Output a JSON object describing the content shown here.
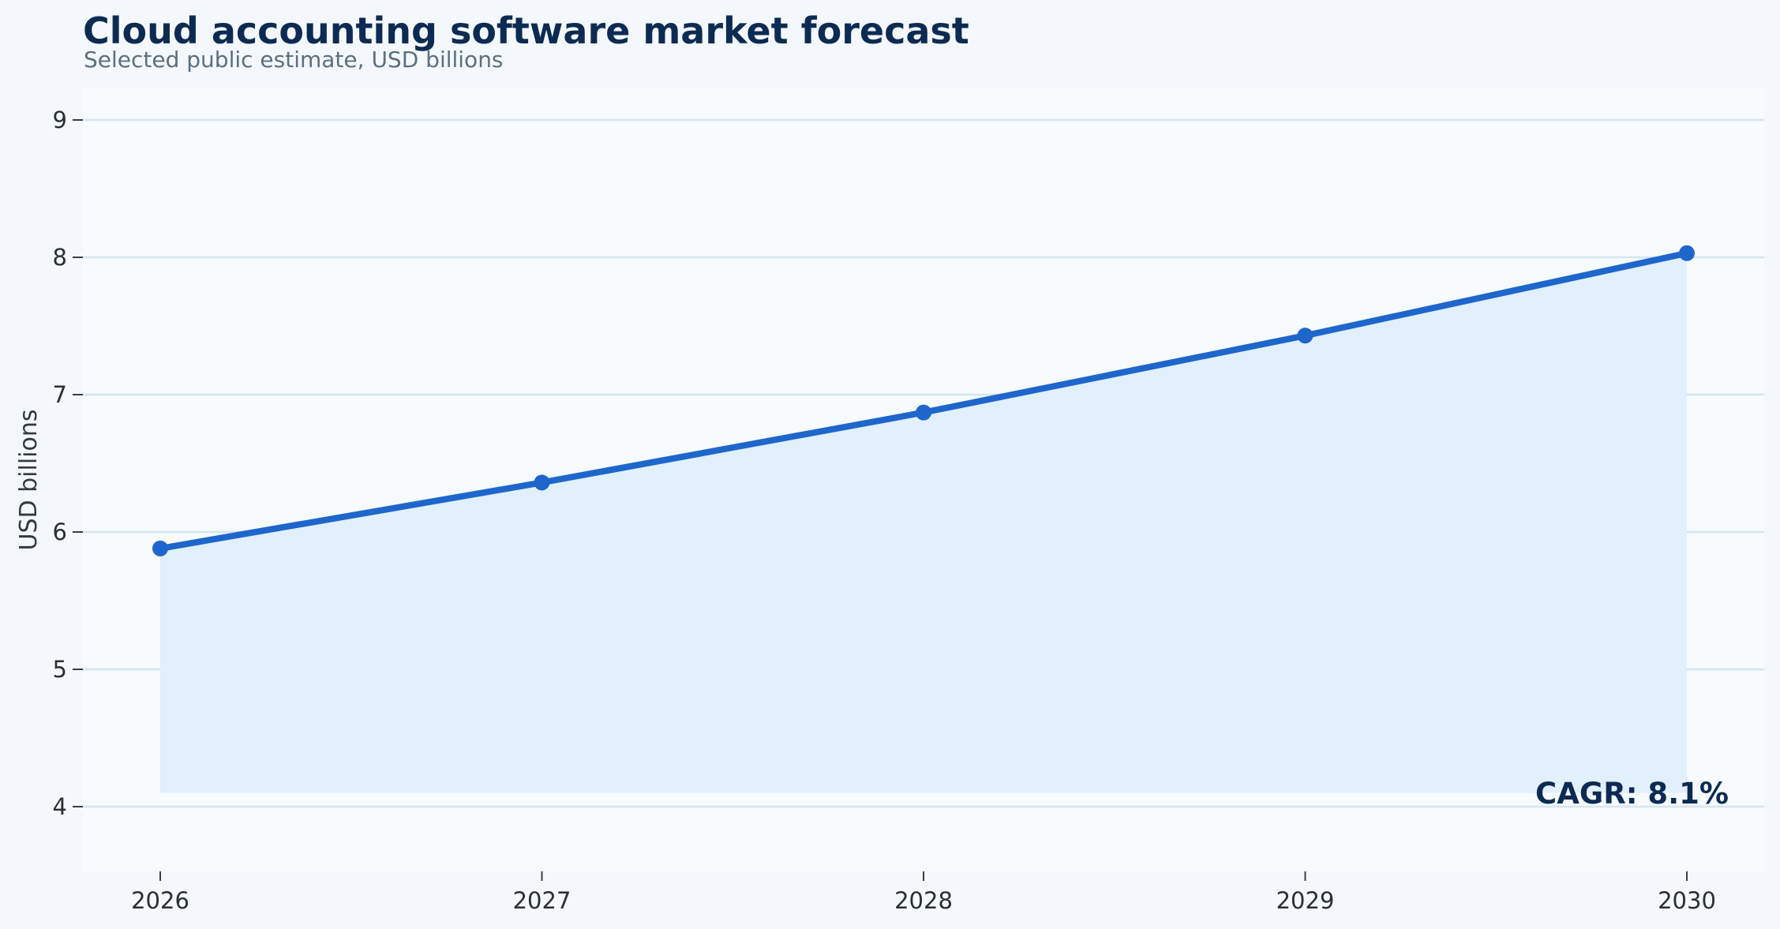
{
  "colors": {
    "page_background": "#f4f8fc",
    "plot_background": "#f7fbfe",
    "line": "#1f66cc",
    "area_fill": "#e2effc",
    "gridline": "#d5e5ef",
    "title": "#0d2b52",
    "subtitle": "#5d6f80"
  },
  "chart_data": {
    "type": "area",
    "title": "Cloud accounting software market forecast",
    "subtitle": "Selected public estimate, USD billions",
    "xlabel": "",
    "ylabel": "USD billions",
    "x": [
      2026,
      2027,
      2028,
      2029,
      2030
    ],
    "x_tick_labels": [
      "2026",
      "2027",
      "2028",
      "2029",
      "2030"
    ],
    "series": [
      {
        "values": [
          5.88,
          6.36,
          6.87,
          7.43,
          8.03
        ],
        "markers": true,
        "fill_to": 4.1
      }
    ],
    "y_ticks": [
      4,
      5,
      6,
      7,
      8,
      9
    ],
    "y_tick_labels": [
      "4",
      "5",
      "6",
      "7",
      "8",
      "9"
    ],
    "ylim": [
      3.5,
      9.2
    ],
    "xlim": [
      2025.8,
      2030.2
    ],
    "grid": "horizontal",
    "legend": "none",
    "annotation": "CAGR: 8.1%",
    "annotation_position": "bottom-right"
  }
}
